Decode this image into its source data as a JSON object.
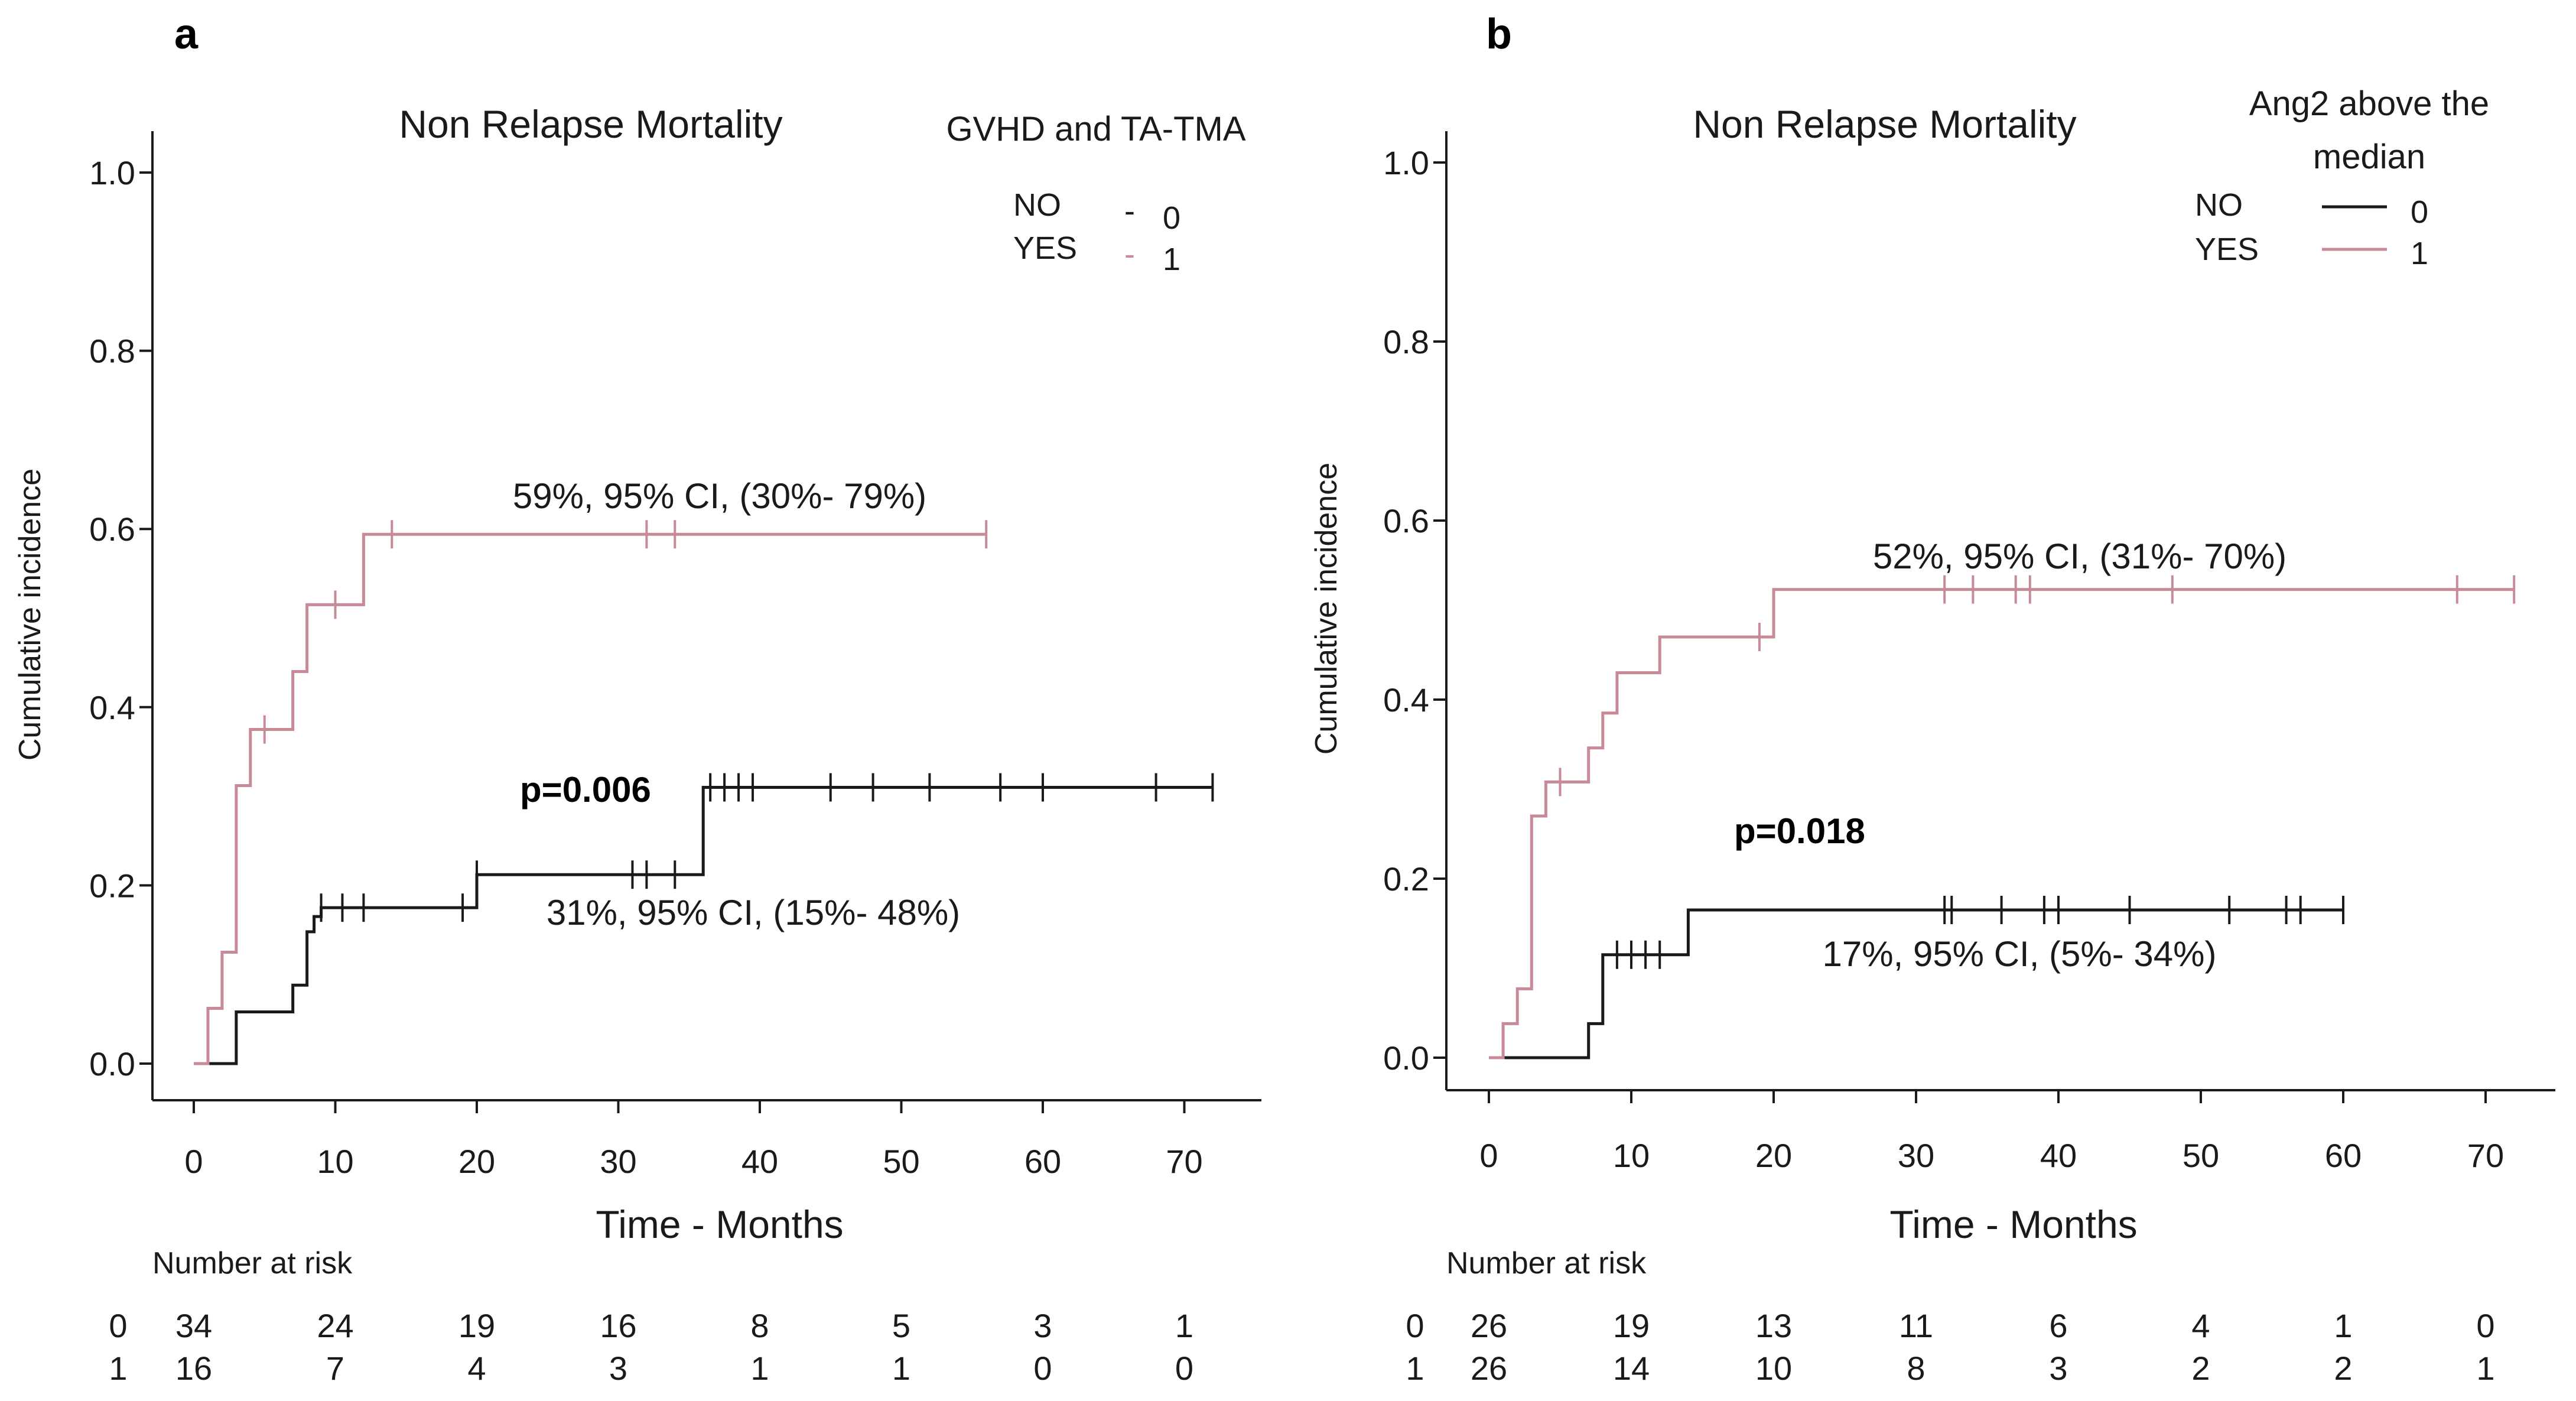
{
  "chart_data": [
    {
      "type": "line",
      "panel_label": "a",
      "title": "Non Relapse Mortality",
      "xlabel": "Time - Months",
      "ylabel": "Cumulative incidence",
      "xlim": [
        0,
        75
      ],
      "ylim": [
        0,
        1.0
      ],
      "xticks": [
        0,
        10,
        20,
        30,
        40,
        50,
        60,
        70
      ],
      "yticks": [
        0.0,
        0.2,
        0.4,
        0.6,
        0.8,
        1.0
      ],
      "ytick_labels": [
        "0.0",
        "0.2",
        "0.4",
        "0.6",
        "0.8",
        "1.0"
      ],
      "legend": {
        "title_lines": [
          "GVHD and TA-TMA"
        ],
        "entries": [
          {
            "name": "NO",
            "code": "0",
            "marker": "-",
            "color": "#1a1a1a"
          },
          {
            "name": "YES",
            "code": "1",
            "marker": "-",
            "color": "#c98a97"
          }
        ]
      },
      "series": [
        {
          "name": "0",
          "color": "#1a1a1a",
          "x": [
            0,
            1,
            3,
            7,
            8,
            8.5,
            9,
            19,
            20,
            36,
            72
          ],
          "y": [
            0,
            0,
            0.058,
            0.088,
            0.148,
            0.165,
            0.175,
            0.175,
            0.212,
            0.31,
            0.31
          ],
          "censor_x": [
            9,
            10.5,
            12,
            19,
            20,
            31,
            32,
            34,
            36.5,
            37.5,
            38.5,
            39.5,
            45,
            48,
            52,
            57,
            60,
            68,
            72
          ],
          "annotation": "31%,  95% CI, (15%- 48%)"
        },
        {
          "name": "1",
          "color": "#c98a97",
          "x": [
            0,
            1,
            2,
            3,
            4,
            7,
            8,
            12,
            56
          ],
          "y": [
            0,
            0.062,
            0.125,
            0.312,
            0.375,
            0.44,
            0.515,
            0.594,
            0.594
          ],
          "censor_x": [
            5,
            10,
            14,
            32,
            34,
            56
          ],
          "annotation": "59%,  95% CI, (30%- 79%)"
        }
      ],
      "p_value": "p=0.006",
      "risk_table": {
        "title": "Number at risk",
        "times": [
          0,
          10,
          20,
          30,
          40,
          50,
          60,
          70
        ],
        "rows": [
          {
            "group": "0",
            "values": [
              "34",
              "24",
              "19",
              "16",
              "8",
              "5",
              "3",
              "1"
            ]
          },
          {
            "group": "1",
            "values": [
              "16",
              "7",
              "4",
              "3",
              "1",
              "1",
              "0",
              "0"
            ]
          }
        ]
      }
    },
    {
      "type": "line",
      "panel_label": "b",
      "title": "Non Relapse Mortality",
      "xlabel": "Time - Months",
      "ylabel": "Cumulative incidence",
      "xlim": [
        0,
        75
      ],
      "ylim": [
        0,
        1.0
      ],
      "xticks": [
        0,
        10,
        20,
        30,
        40,
        50,
        60,
        70
      ],
      "yticks": [
        0.0,
        0.2,
        0.4,
        0.6,
        0.8,
        1.0
      ],
      "ytick_labels": [
        "0.0",
        "0.2",
        "0.4",
        "0.6",
        "0.8",
        "1.0"
      ],
      "legend": {
        "title_lines": [
          "Ang2 above the",
          "median"
        ],
        "entries": [
          {
            "name": "NO",
            "code": "0",
            "marker": "line",
            "color": "#1a1a1a"
          },
          {
            "name": "YES",
            "code": "1",
            "marker": "line",
            "color": "#c98a97"
          }
        ]
      },
      "series": [
        {
          "name": "0",
          "color": "#1a1a1a",
          "x": [
            0,
            1,
            7,
            8,
            14,
            60
          ],
          "y": [
            0,
            0,
            0.038,
            0.115,
            0.165,
            0.165
          ],
          "censor_x": [
            9,
            10,
            11,
            12,
            32,
            32.5,
            36,
            39,
            40,
            45,
            52,
            56,
            57,
            60
          ],
          "annotation": "17%,  95% CI, (5%- 34%)"
        },
        {
          "name": "1",
          "color": "#c98a97",
          "x": [
            0,
            1,
            2,
            3,
            4,
            7,
            8,
            9,
            12,
            20,
            72
          ],
          "y": [
            0,
            0.038,
            0.077,
            0.27,
            0.308,
            0.346,
            0.385,
            0.43,
            0.47,
            0.523,
            0.523
          ],
          "censor_x": [
            5,
            19,
            32,
            34,
            37,
            38,
            48,
            68,
            72
          ],
          "annotation": "52%,  95% CI, (31%- 70%)"
        }
      ],
      "p_value": "p=0.018",
      "risk_table": {
        "title": "Number at risk",
        "times": [
          0,
          10,
          20,
          30,
          40,
          50,
          60,
          70
        ],
        "rows": [
          {
            "group": "0",
            "values": [
              "26",
              "19",
              "13",
              "11",
              "6",
              "4",
              "1",
              "0"
            ]
          },
          {
            "group": "1",
            "values": [
              "26",
              "14",
              "10",
              "8",
              "3",
              "2",
              "2",
              "1"
            ]
          }
        ]
      }
    }
  ]
}
